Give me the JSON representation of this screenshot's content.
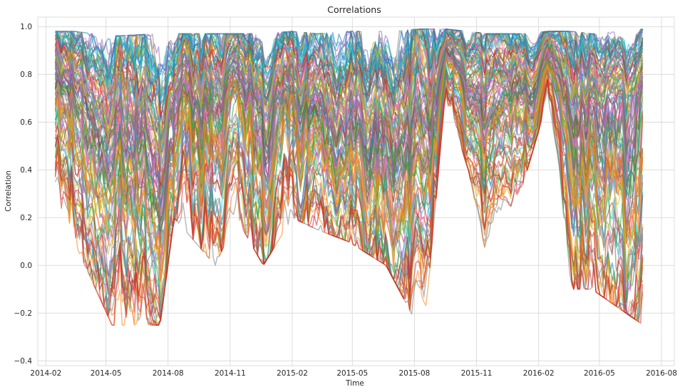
{
  "chart_data": {
    "type": "line",
    "title": "Correlations",
    "xlabel": "Time",
    "ylabel": "Correlation",
    "x_range": [
      "2014-01-20",
      "2016-08-20"
    ],
    "ylim": [
      -0.42,
      1.04
    ],
    "x_ticks": [
      "2014-02",
      "2014-05",
      "2014-08",
      "2014-11",
      "2015-02",
      "2015-05",
      "2015-08",
      "2015-11",
      "2016-02",
      "2016-05",
      "2016-08"
    ],
    "y_ticks": [
      -0.4,
      -0.2,
      0.0,
      0.2,
      0.4,
      0.6,
      0.8,
      1.0
    ],
    "y_tick_labels": [
      "−0.4",
      "−0.2",
      "0.0",
      "0.2",
      "0.4",
      "0.6",
      "0.8",
      "1.0"
    ],
    "grid": true,
    "legend": "none",
    "series_count": 120,
    "palette": [
      "#1f77b4",
      "#ff7f0e",
      "#2ca02c",
      "#d62728",
      "#9467bd",
      "#8c564b",
      "#e377c2",
      "#7f7f7f",
      "#bcbd22",
      "#17becf"
    ],
    "series_envelope": {
      "description": "approximate daily correlation range across all series",
      "dates": [
        "2014-02-15",
        "2014-03-15",
        "2014-05-10",
        "2014-07-20",
        "2014-08-10",
        "2014-10-10",
        "2014-11-10",
        "2014-12-20",
        "2015-02-01",
        "2015-03-10",
        "2015-04-25",
        "2015-06-20",
        "2015-08-15",
        "2015-09-15",
        "2015-10-20",
        "2015-11-15",
        "2016-01-10",
        "2016-02-15",
        "2016-03-20",
        "2016-04-20",
        "2016-07-05"
      ],
      "upper": [
        0.98,
        0.98,
        0.96,
        0.97,
        0.97,
        0.97,
        0.97,
        0.97,
        0.98,
        0.97,
        0.98,
        0.98,
        0.99,
        0.99,
        0.98,
        0.97,
        0.97,
        0.98,
        0.98,
        0.97,
        0.99
      ],
      "median": [
        0.72,
        0.7,
        0.45,
        0.4,
        0.7,
        0.6,
        0.72,
        0.62,
        0.7,
        0.62,
        0.55,
        0.6,
        0.35,
        0.88,
        0.75,
        0.55,
        0.72,
        0.85,
        0.55,
        0.65,
        0.72
      ],
      "lower": [
        0.3,
        0.1,
        -0.25,
        -0.25,
        0.2,
        0.0,
        0.2,
        0.0,
        0.2,
        0.15,
        0.1,
        0.0,
        -0.3,
        0.7,
        0.4,
        0.05,
        0.35,
        0.7,
        -0.1,
        -0.1,
        -0.25
      ]
    }
  }
}
